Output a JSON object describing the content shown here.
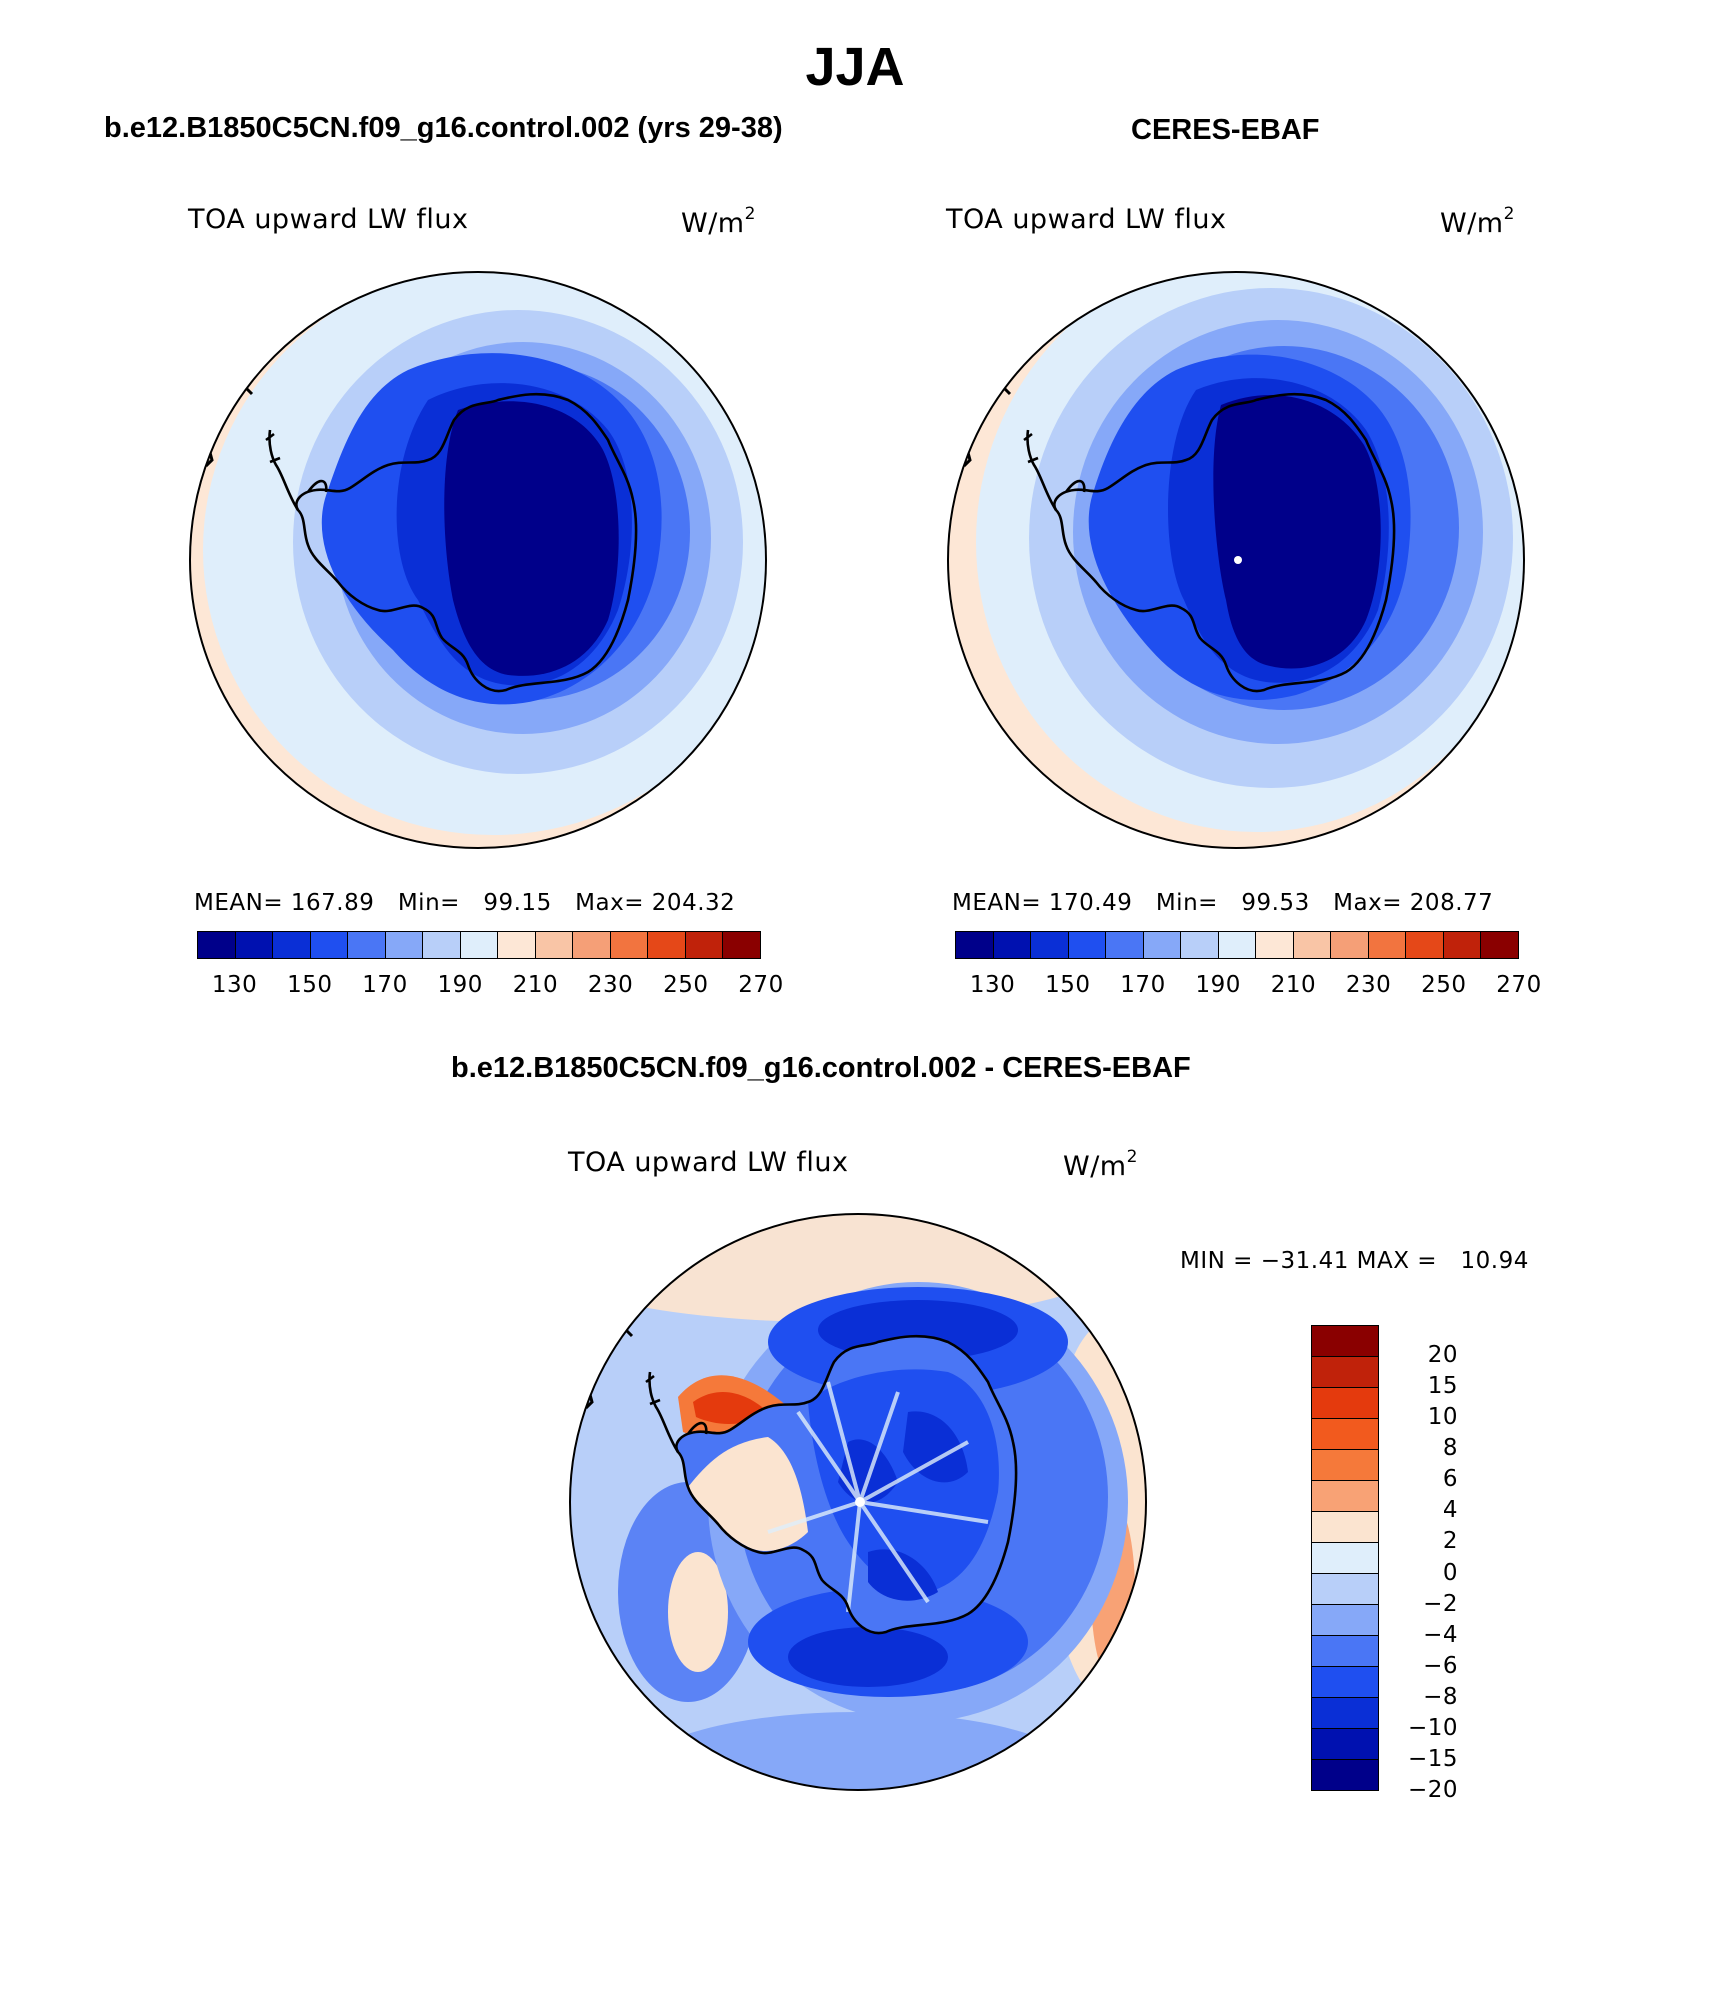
{
  "figure": {
    "title": "JJA"
  },
  "panels": {
    "model": {
      "header": "b.e12.B1850C5CN.f09_g16.control.002 (yrs 29-38)",
      "variable": "TOA upward LW flux",
      "units_base": "W/m",
      "units_exp": "2",
      "mean_label": "MEAN=",
      "mean": "167.89",
      "min_label": "Min=",
      "min": "99.15",
      "max_label": "Max=",
      "max": "204.32"
    },
    "obs": {
      "header": "CERES-EBAF",
      "variable": "TOA upward LW flux",
      "units_base": "W/m",
      "units_exp": "2",
      "mean_label": "MEAN=",
      "mean": "170.49",
      "min_label": "Min=",
      "min": "99.53",
      "max_label": "Max=",
      "max": "208.77"
    },
    "diff": {
      "header": "b.e12.B1850C5CN.f09_g16.control.002 - CERES-EBAF",
      "variable": "TOA upward LW flux",
      "units_base": "W/m",
      "units_exp": "2",
      "minmax": "MIN = −31.41 MAX =   10.94"
    }
  },
  "colorbar_abs": {
    "colors": [
      "#00008a",
      "#0011b0",
      "#0a2fd6",
      "#1f4ff0",
      "#4a76f5",
      "#86a8f8",
      "#b8cff9",
      "#dfeefb",
      "#fde7d6",
      "#f9c5a6",
      "#f59f77",
      "#f2743f",
      "#e54818",
      "#c0220a",
      "#8a0000"
    ],
    "tick_labels": [
      "130",
      "150",
      "170",
      "190",
      "210",
      "230",
      "250",
      "270"
    ]
  },
  "colorbar_diff": {
    "colors": [
      "#8a0000",
      "#c0220a",
      "#e43a0d",
      "#f25a1e",
      "#f5793a",
      "#f8a275",
      "#fbe4d0",
      "#dfeefb",
      "#b8cff9",
      "#86a8f8",
      "#4a76f5",
      "#1f4ff0",
      "#0a2fd6",
      "#0011b0",
      "#00008a"
    ],
    "tick_labels": [
      "20",
      "15",
      "10",
      "8",
      "6",
      "4",
      "2",
      "0",
      "−2",
      "−4",
      "−6",
      "−8",
      "−10",
      "−15",
      "−20"
    ]
  },
  "map_colors": {
    "abs_rings": [
      "#fde7d6",
      "#dfeefb",
      "#b8cff9",
      "#86a8f8",
      "#4a76f5",
      "#1f4ff0",
      "#0a2fd6",
      "#00008a"
    ],
    "diff_ocean": "#b8cff9",
    "diff_band": "#1f4ff0",
    "diff_pink": "#fbe4d0",
    "diff_orange": "#f5793a",
    "coast": "#000000",
    "frame": "#000000"
  }
}
